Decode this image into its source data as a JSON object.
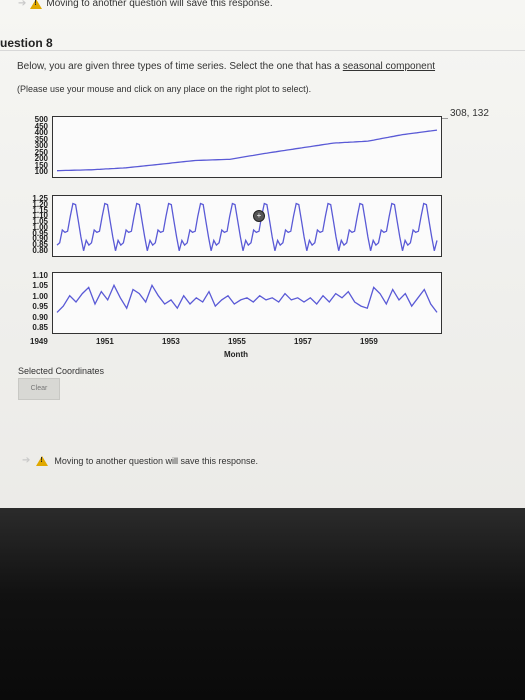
{
  "top_notice": "Moving to another question will save this response.",
  "question_title": "uestion 8",
  "prompt": {
    "text": "Below, you are given three types of time series. Select the one that has a ",
    "link": "seasonal component"
  },
  "hint": "(Please use your mouse and click on any place on the right plot to select).",
  "coordinates_readout": "308, 132",
  "selected_coordinates_label": "Selected Coordinates",
  "clear_button": "Clear",
  "bottom_notice": "Moving to another question will save this response.",
  "line_color": "#5a5ad6",
  "chart_data": [
    {
      "type": "line",
      "name_hint": "",
      "yticks": [
        "500",
        "450",
        "400",
        "350",
        "300",
        "250",
        "200",
        "150",
        "100"
      ],
      "ylim": [
        100,
        500
      ],
      "x": [
        1949,
        1950,
        1951,
        1952,
        1953,
        1954,
        1955,
        1956,
        1957,
        1958,
        1959,
        1960
      ],
      "values": [
        118,
        125,
        140,
        168,
        196,
        205,
        250,
        290,
        330,
        345,
        395,
        430
      ]
    },
    {
      "type": "line",
      "yticks": [
        "1.25",
        "1.20",
        "1.15",
        "1.10",
        "1.05",
        "1.00",
        "0.95",
        "0.90",
        "0.85",
        "0.80"
      ],
      "ylim": [
        0.8,
        1.25
      ],
      "seasonal_pattern": [
        0.86,
        0.88,
        0.99,
        0.97,
        0.98,
        1.11,
        1.22,
        1.21,
        1.07,
        0.93,
        0.81,
        0.9
      ],
      "years": 12
    },
    {
      "type": "line",
      "yticks": [
        "1.10",
        "1.05",
        "1.00",
        "0.95",
        "0.90",
        "0.85"
      ],
      "ylim": [
        0.85,
        1.1
      ],
      "values": [
        0.93,
        0.96,
        1.01,
        0.98,
        1.02,
        1.05,
        0.97,
        1.03,
        0.99,
        1.06,
        1.0,
        0.95,
        1.04,
        1.02,
        0.98,
        1.06,
        1.01,
        0.97,
        0.99,
        0.95,
        1.01,
        0.97,
        1.0,
        0.98,
        1.03,
        0.96,
        0.99,
        1.01,
        0.97,
        0.99,
        1.0,
        0.98,
        1.01,
        0.99,
        1.0,
        0.98,
        1.02,
        0.99,
        1.0,
        0.98,
        1.0,
        0.97,
        1.01,
        0.98,
        1.02,
        1.0,
        1.03,
        0.98,
        0.96,
        0.95,
        1.05,
        1.02,
        0.97,
        1.04,
        0.99,
        1.02,
        0.96,
        1.0,
        1.04,
        0.97,
        0.93
      ],
      "xticks": [
        "1949",
        "1951",
        "1953",
        "1955",
        "1957",
        "1959"
      ],
      "xlabel": "Month"
    }
  ]
}
